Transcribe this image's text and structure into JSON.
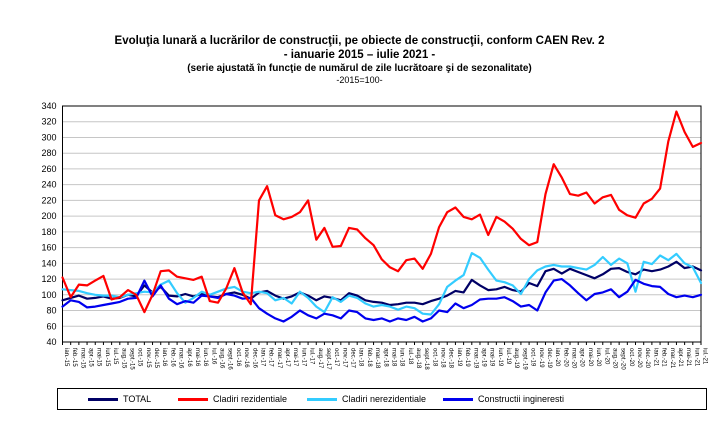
{
  "title": {
    "line1": "Evoluţia lunară a lucrărilor de construcţii, pe obiecte de construcţii, conform CAEN Rev. 2",
    "line2": "- ianuarie 2015 – iulie 2021 -",
    "line3": "(serie ajustată în funcţie de numărul de zile lucrătoare şi de sezonalitate)",
    "line4": "-2015=100-"
  },
  "chart_data": {
    "type": "line",
    "title": "Evoluţia lunară a lucrărilor de construcţii, pe obiecte de construcţii, conform CAEN Rev. 2",
    "subtitle": "- ianuarie 2015 – iulie 2021 - (serie ajustată în funcţie de numărul de zile lucrătoare şi de sezonalitate) -2015=100-",
    "xlabel": "",
    "ylabel": "",
    "ylim": [
      40,
      340
    ],
    "ytick_step": 20,
    "grid": true,
    "legend_position": "bottom",
    "grid_color": "#c6c6c6",
    "axis_color": "#000000",
    "categories": [
      "ian.-15",
      "feb.-15",
      "mar.-15",
      "apr.-15",
      "mai-15",
      "iun.-15",
      "iul.-15",
      "aug.-15",
      "sept.-15",
      "oct.-15",
      "nov.-15",
      "dec.-15",
      "ian.-16",
      "feb.-16",
      "mar.-16",
      "apr.-16",
      "mai-16",
      "iun.-16",
      "iul.-16",
      "aug.-16",
      "sept.-16",
      "oct.-16",
      "nov.-16",
      "dec.-16",
      "ian.-17",
      "feb.-17",
      "mar.-17",
      "apr.-17",
      "mai-17",
      "iun.-17",
      "iul.-17",
      "aug.-17",
      "sept.-17",
      "oct.-17",
      "nov.-17",
      "dec.-17",
      "ian.-18",
      "feb.-18",
      "mar.-18",
      "apr.-18",
      "mai-18",
      "iun.-18",
      "iul.-18",
      "aug.-18",
      "sept.-18",
      "oct.-18",
      "nov.-18",
      "dec.-18",
      "ian.-19",
      "feb.-19",
      "mar.-19",
      "apr.-19",
      "mai-19",
      "iun.-19",
      "iul.-19",
      "aug.-19",
      "sept.-19",
      "oct.-19",
      "nov.-19",
      "dec.-19",
      "ian.-20",
      "feb.-20",
      "mar.-20",
      "apr.-20",
      "mai-20",
      "iun.-20",
      "iul.-20",
      "aug.-20",
      "sept.-20",
      "oct.-20",
      "nov.-20",
      "dec.-20",
      "ian.-21",
      "feb.-21",
      "mar.-21",
      "apr.-21",
      "mai-21",
      "iun.-21",
      "iul.-21"
    ],
    "series": [
      {
        "name": "TOTAL",
        "color": "#000066",
        "values": [
          93,
          96,
          99,
          95,
          96,
          98,
          95,
          96,
          100,
          98,
          112,
          103,
          110,
          99,
          98,
          101,
          98,
          101,
          98,
          97,
          101,
          103,
          100,
          95,
          103,
          105,
          99,
          95,
          98,
          103,
          99,
          93,
          98,
          96,
          93,
          102,
          99,
          93,
          91,
          90,
          87,
          88,
          90,
          90,
          88,
          92,
          95,
          99,
          105,
          103,
          119,
          112,
          106,
          107,
          110,
          106,
          104,
          115,
          111,
          130,
          133,
          127,
          133,
          129,
          125,
          121,
          126,
          133,
          134,
          129,
          126,
          132,
          130,
          132,
          136,
          142,
          134,
          136,
          131
        ]
      },
      {
        "name": "Cladiri rezidentiale",
        "color": "#ff0000",
        "values": [
          122,
          97,
          113,
          112,
          118,
          124,
          94,
          97,
          106,
          100,
          78,
          100,
          130,
          131,
          123,
          121,
          119,
          123,
          92,
          90,
          108,
          134,
          103,
          88,
          220,
          238,
          201,
          196,
          199,
          205,
          220,
          170,
          185,
          161,
          162,
          185,
          183,
          172,
          163,
          145,
          135,
          130,
          144,
          146,
          133,
          152,
          186,
          205,
          211,
          199,
          196,
          202,
          176,
          199,
          193,
          184,
          171,
          163,
          167,
          228,
          266,
          249,
          228,
          226,
          230,
          216,
          224,
          227,
          208,
          201,
          198,
          216,
          222,
          235,
          295,
          333,
          307,
          288,
          293
        ]
      },
      {
        "name": "Cladiri nerezidentiale",
        "color": "#33ccff",
        "values": [
          107,
          106,
          105,
          102,
          100,
          99,
          99,
          97,
          100,
          102,
          104,
          103,
          113,
          118,
          102,
          90,
          96,
          104,
          100,
          104,
          108,
          110,
          104,
          102,
          104,
          102,
          93,
          96,
          89,
          104,
          96,
          85,
          78,
          97,
          91,
          99,
          96,
          89,
          85,
          87,
          85,
          81,
          85,
          83,
          76,
          75,
          88,
          110,
          118,
          125,
          153,
          147,
          132,
          118,
          116,
          112,
          101,
          120,
          131,
          136,
          138,
          136,
          136,
          134,
          132,
          138,
          148,
          138,
          146,
          140,
          104,
          142,
          139,
          150,
          144,
          152,
          140,
          135,
          115
        ]
      },
      {
        "name": "Constructii ingineresti",
        "color": "#0000ee",
        "values": [
          85,
          93,
          91,
          84,
          85,
          87,
          89,
          91,
          95,
          96,
          118,
          98,
          112,
          95,
          88,
          92,
          90,
          99,
          98,
          96,
          101,
          99,
          95,
          96,
          83,
          76,
          70,
          66,
          72,
          80,
          74,
          70,
          76,
          74,
          70,
          80,
          78,
          70,
          68,
          70,
          66,
          70,
          68,
          72,
          66,
          70,
          80,
          78,
          89,
          83,
          87,
          94,
          95,
          95,
          97,
          92,
          85,
          87,
          80,
          103,
          118,
          120,
          112,
          102,
          93,
          101,
          103,
          107,
          97,
          104,
          119,
          114,
          111,
          110,
          101,
          97,
          99,
          97,
          100
        ]
      }
    ]
  }
}
